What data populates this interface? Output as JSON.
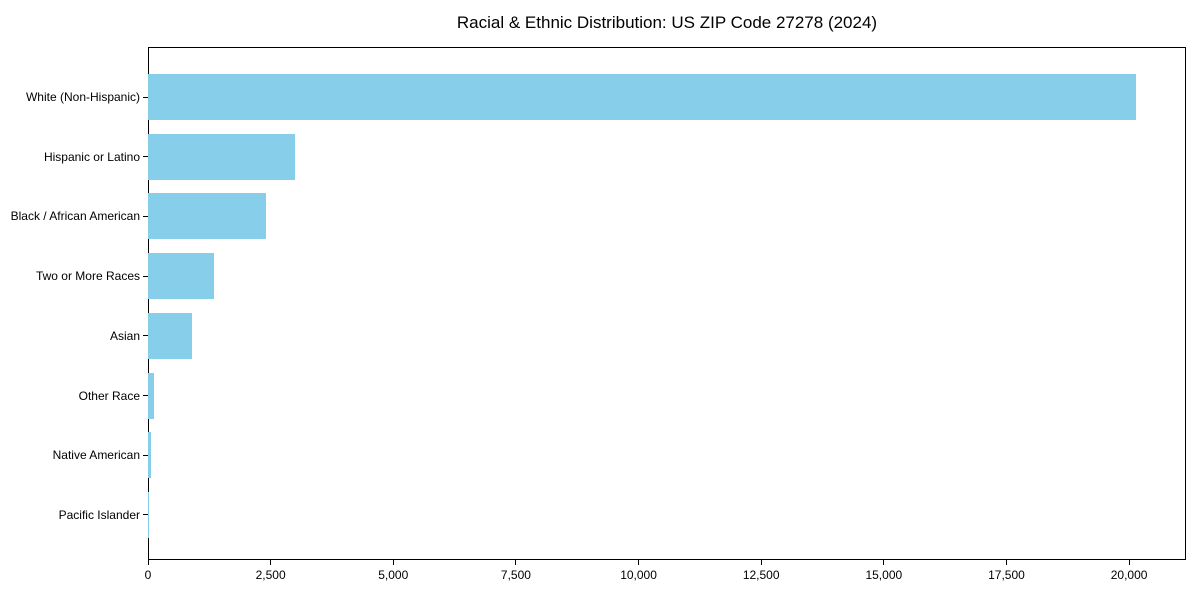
{
  "window": {
    "background": "#FFFFFF"
  },
  "chart_data": {
    "type": "bar",
    "orientation": "horizontal",
    "title": "Racial & Ethnic Distribution: US ZIP Code 27278 (2024)",
    "categories": [
      "White (Non-Hispanic)",
      "Hispanic or Latino",
      "Black / African American",
      "Two or More Races",
      "Asian",
      "Other Race",
      "Native American",
      "Pacific Islander"
    ],
    "values": [
      20150,
      3000,
      2400,
      1350,
      890,
      115,
      60,
      15
    ],
    "xlabel": "",
    "ylabel": "",
    "xlim": [
      0,
      21160
    ],
    "x_ticks": [
      0,
      2500,
      5000,
      7500,
      10000,
      12500,
      15000,
      17500,
      20000
    ],
    "x_tick_labels": [
      "0",
      "2,500",
      "5,000",
      "7,500",
      "10,000",
      "12,500",
      "15,000",
      "17,500",
      "20,000"
    ],
    "bar_color": "#87CEEB",
    "axis_color": "#000000",
    "text_color": "#000000",
    "grid": false,
    "legend": false
  }
}
